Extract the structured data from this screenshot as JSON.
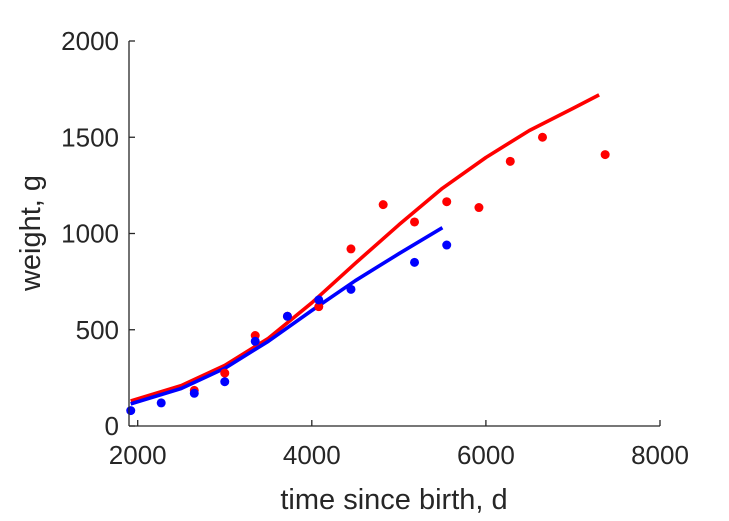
{
  "chart_data": {
    "type": "scatter",
    "xlabel": "time since birth, d",
    "ylabel": "weight, g",
    "xlim": [
      1900,
      8000
    ],
    "ylim": [
      0,
      2000
    ],
    "xticks": [
      2000,
      4000,
      6000,
      8000
    ],
    "yticks": [
      0,
      500,
      1000,
      1500,
      2000
    ],
    "xtick_labels": [
      "2000",
      "4000",
      "6000",
      "8000"
    ],
    "ytick_labels": [
      "0",
      "500",
      "1000",
      "1500",
      "2000"
    ],
    "grid": false,
    "axes_box": "left-bottom",
    "series": [
      {
        "color": "#ff0000",
        "points": [
          [
            2650,
            185
          ],
          [
            3000,
            275
          ],
          [
            3350,
            470
          ],
          [
            3720,
            570
          ],
          [
            4080,
            620
          ],
          [
            4450,
            920
          ],
          [
            4820,
            1150
          ],
          [
            5180,
            1060
          ],
          [
            5550,
            1165
          ],
          [
            5920,
            1135
          ],
          [
            6280,
            1375
          ],
          [
            6650,
            1500
          ],
          [
            7370,
            1410
          ]
        ],
        "fit": [
          [
            1920,
            130
          ],
          [
            2500,
            210
          ],
          [
            3000,
            315
          ],
          [
            3500,
            455
          ],
          [
            4000,
            640
          ],
          [
            4500,
            845
          ],
          [
            5000,
            1045
          ],
          [
            5500,
            1235
          ],
          [
            6000,
            1395
          ],
          [
            6500,
            1535
          ],
          [
            7000,
            1650
          ],
          [
            7300,
            1720
          ]
        ]
      },
      {
        "color": "#0000ff",
        "points": [
          [
            1920,
            80
          ],
          [
            2270,
            120
          ],
          [
            2650,
            170
          ],
          [
            3000,
            230
          ],
          [
            3350,
            440
          ],
          [
            3720,
            570
          ],
          [
            4080,
            655
          ],
          [
            4450,
            710
          ],
          [
            5180,
            850
          ],
          [
            5550,
            940
          ]
        ],
        "fit": [
          [
            1920,
            115
          ],
          [
            2500,
            195
          ],
          [
            3000,
            300
          ],
          [
            3500,
            440
          ],
          [
            4000,
            600
          ],
          [
            4500,
            755
          ],
          [
            5000,
            895
          ],
          [
            5500,
            1030
          ]
        ]
      }
    ]
  }
}
